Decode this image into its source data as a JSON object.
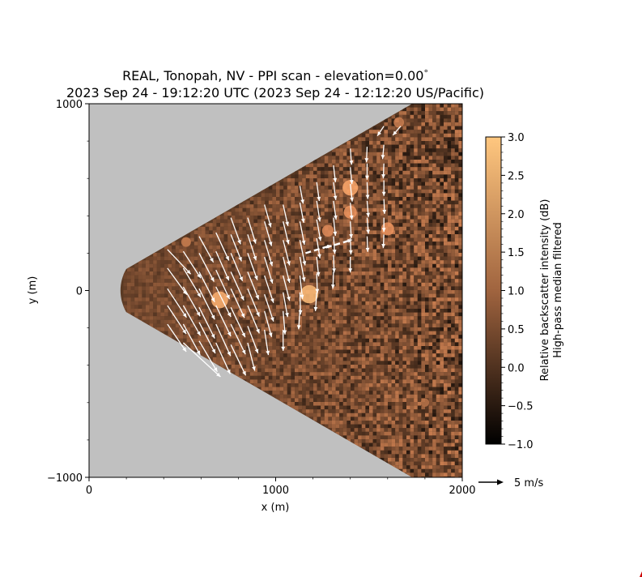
{
  "chart_data": {
    "type": "heatmap",
    "title_line1": "REAL, Tonopah, NV - PPI scan - elevation=0.00",
    "title_degree": "°",
    "title_line2": "2023 Sep 24 - 19:12:20 UTC (2023 Sep 24 - 12:12:20 US/Pacific)",
    "xlabel": "x (m)",
    "ylabel": "y (m)",
    "xlim": [
      0,
      2000
    ],
    "ylim": [
      -1000,
      1000
    ],
    "x_ticks": [
      {
        "value": 0,
        "label": "0"
      },
      {
        "value": 1000,
        "label": "1000"
      },
      {
        "value": 2000,
        "label": "2000"
      }
    ],
    "y_ticks": [
      {
        "value": 1000,
        "label": "1000"
      },
      {
        "value": 0,
        "label": "0"
      },
      {
        "value": -1000,
        "label": "−1000"
      }
    ],
    "scan_sector": {
      "min_range_m": 230,
      "half_angle_deg": 30
    },
    "colorbar": {
      "label_line1": "Relative backscatter intensity (dB)",
      "label_line2": "High-pass median filtered",
      "vmin": -1.0,
      "vmax": 3.0,
      "ticks": [
        {
          "value": 3.0,
          "label": "3.0"
        },
        {
          "value": 2.5,
          "label": "2.5"
        },
        {
          "value": 2.0,
          "label": "2.0"
        },
        {
          "value": 1.5,
          "label": "1.5"
        },
        {
          "value": 1.0,
          "label": "1.0"
        },
        {
          "value": 0.5,
          "label": "0.5"
        },
        {
          "value": 0.0,
          "label": "0.0"
        },
        {
          "value": -0.5,
          "label": "−0.5"
        },
        {
          "value": -1.0,
          "label": "−1.0"
        }
      ],
      "colormap": "copper",
      "colors": [
        "#000000",
        "#a0643f",
        "#ffc77f"
      ]
    },
    "quiver_key": {
      "label": "5 m/s",
      "speed_m_s": 5
    },
    "background_color": "#c0c0c0",
    "vector_color": "#ffffff",
    "bright_features": [
      {
        "x": 700,
        "y": -50,
        "value": 2.6
      },
      {
        "x": 1180,
        "y": -20,
        "value": 2.8
      },
      {
        "x": 1400,
        "y": 550,
        "value": 2.4
      },
      {
        "x": 1400,
        "y": 420,
        "value": 2.0
      },
      {
        "x": 1280,
        "y": 320,
        "value": 1.8
      },
      {
        "x": 520,
        "y": 260,
        "value": 1.5
      },
      {
        "x": 1600,
        "y": 330,
        "value": 2.0
      },
      {
        "x": 1660,
        "y": 900,
        "value": 1.6
      },
      {
        "x": 820,
        "y": -120,
        "value": 1.4
      },
      {
        "x": 1800,
        "y": -600,
        "value": 1.3
      }
    ],
    "wind_vectors": [
      {
        "x": 420,
        "y": 220,
        "u": 0.72,
        "v": -0.76
      },
      {
        "x": 420,
        "y": 120,
        "u": 0.6,
        "v": -0.82
      },
      {
        "x": 420,
        "y": 10,
        "u": 0.59,
        "v": -0.89
      },
      {
        "x": 420,
        "y": -80,
        "u": 0.58,
        "v": -0.88
      },
      {
        "x": 420,
        "y": -180,
        "u": 0.58,
        "v": -0.85
      },
      {
        "x": 505,
        "y": 210,
        "u": 0.54,
        "v": -0.83
      },
      {
        "x": 505,
        "y": 120,
        "u": 0.54,
        "v": -0.9
      },
      {
        "x": 505,
        "y": 20,
        "u": 0.52,
        "v": -0.91
      },
      {
        "x": 505,
        "y": -80,
        "u": 0.53,
        "v": -0.93
      },
      {
        "x": 505,
        "y": -180,
        "u": 0.52,
        "v": -0.95
      },
      {
        "x": 505,
        "y": -280,
        "u": 1.15,
        "v": -1.05
      },
      {
        "x": 590,
        "y": 290,
        "u": 0.44,
        "v": -0.8
      },
      {
        "x": 590,
        "y": 200,
        "u": 0.46,
        "v": -0.88
      },
      {
        "x": 590,
        "y": 100,
        "u": 0.48,
        "v": -0.93
      },
      {
        "x": 590,
        "y": 10,
        "u": 0.48,
        "v": -0.95
      },
      {
        "x": 590,
        "y": -90,
        "u": 0.48,
        "v": -0.96
      },
      {
        "x": 590,
        "y": -170,
        "u": 0.5,
        "v": -0.96
      },
      {
        "x": 590,
        "y": -270,
        "u": 0.56,
        "v": -0.95
      },
      {
        "x": 680,
        "y": 310,
        "u": 0.4,
        "v": -0.86
      },
      {
        "x": 680,
        "y": 210,
        "u": 0.4,
        "v": -0.9
      },
      {
        "x": 680,
        "y": 110,
        "u": 0.42,
        "v": -0.9
      },
      {
        "x": 680,
        "y": 20,
        "u": 0.46,
        "v": -0.93
      },
      {
        "x": 680,
        "y": -80,
        "u": 0.46,
        "v": -0.95
      },
      {
        "x": 680,
        "y": -180,
        "u": 0.45,
        "v": -0.98
      },
      {
        "x": 680,
        "y": -280,
        "u": 0.44,
        "v": -0.96
      },
      {
        "x": 760,
        "y": 390,
        "u": 0.3,
        "v": -0.82
      },
      {
        "x": 760,
        "y": 300,
        "u": 0.33,
        "v": -0.83
      },
      {
        "x": 760,
        "y": 200,
        "u": 0.36,
        "v": -0.86
      },
      {
        "x": 760,
        "y": 100,
        "u": 0.4,
        "v": -0.88
      },
      {
        "x": 760,
        "y": 10,
        "u": 0.42,
        "v": -0.9
      },
      {
        "x": 760,
        "y": -90,
        "u": 0.44,
        "v": -0.92
      },
      {
        "x": 760,
        "y": -180,
        "u": 0.45,
        "v": -0.93
      },
      {
        "x": 760,
        "y": -290,
        "u": 0.46,
        "v": -0.95
      },
      {
        "x": 850,
        "y": 390,
        "u": 0.25,
        "v": -0.8
      },
      {
        "x": 850,
        "y": 300,
        "u": 0.26,
        "v": -0.8
      },
      {
        "x": 850,
        "y": 200,
        "u": 0.3,
        "v": -0.83
      },
      {
        "x": 850,
        "y": 100,
        "u": 0.34,
        "v": -0.85
      },
      {
        "x": 850,
        "y": 10,
        "u": 0.36,
        "v": -0.86
      },
      {
        "x": 850,
        "y": -80,
        "u": 0.36,
        "v": -0.86
      },
      {
        "x": 850,
        "y": -190,
        "u": 0.32,
        "v": -0.84
      },
      {
        "x": 850,
        "y": -280,
        "u": 0.22,
        "v": -0.86
      },
      {
        "x": 940,
        "y": 460,
        "u": 0.2,
        "v": -0.7
      },
      {
        "x": 940,
        "y": 370,
        "u": 0.22,
        "v": -0.76
      },
      {
        "x": 940,
        "y": 270,
        "u": 0.24,
        "v": -0.8
      },
      {
        "x": 940,
        "y": 180,
        "u": 0.25,
        "v": -0.82
      },
      {
        "x": 940,
        "y": 80,
        "u": 0.28,
        "v": -0.84
      },
      {
        "x": 940,
        "y": -20,
        "u": 0.28,
        "v": -0.84
      },
      {
        "x": 940,
        "y": -110,
        "u": 0.22,
        "v": -0.8
      },
      {
        "x": 940,
        "y": -210,
        "u": 0.12,
        "v": -0.78
      },
      {
        "x": 1040,
        "y": 460,
        "u": 0.15,
        "v": -0.66
      },
      {
        "x": 1040,
        "y": 370,
        "u": 0.17,
        "v": -0.7
      },
      {
        "x": 1040,
        "y": 270,
        "u": 0.2,
        "v": -0.78
      },
      {
        "x": 1040,
        "y": 180,
        "u": 0.2,
        "v": -0.8
      },
      {
        "x": 1040,
        "y": 80,
        "u": 0.2,
        "v": -0.78
      },
      {
        "x": 1040,
        "y": -10,
        "u": 0.14,
        "v": -0.76
      },
      {
        "x": 1040,
        "y": -110,
        "u": 0.06,
        "v": -0.72
      },
      {
        "x": 1040,
        "y": -210,
        "u": 0.0,
        "v": -0.65
      },
      {
        "x": 1130,
        "y": 560,
        "u": 0.1,
        "v": -0.55
      },
      {
        "x": 1130,
        "y": 470,
        "u": 0.12,
        "v": -0.62
      },
      {
        "x": 1130,
        "y": 370,
        "u": 0.14,
        "v": -0.72
      },
      {
        "x": 1130,
        "y": 270,
        "u": 0.16,
        "v": -0.78
      },
      {
        "x": 1130,
        "y": 180,
        "u": 0.14,
        "v": -0.76
      },
      {
        "x": 1130,
        "y": 80,
        "u": 0.08,
        "v": -0.72
      },
      {
        "x": 1130,
        "y": -10,
        "u": 0.02,
        "v": -0.68
      },
      {
        "x": 1130,
        "y": -100,
        "u": -0.04,
        "v": -0.62
      },
      {
        "x": 1220,
        "y": 580,
        "u": 0.08,
        "v": -0.58
      },
      {
        "x": 1220,
        "y": 480,
        "u": 0.1,
        "v": -0.64
      },
      {
        "x": 1220,
        "y": 380,
        "u": 0.12,
        "v": -0.66
      },
      {
        "x": 1220,
        "y": 280,
        "u": 0.1,
        "v": -0.62
      },
      {
        "x": 1220,
        "y": 180,
        "u": 0.06,
        "v": -0.6
      },
      {
        "x": 1220,
        "y": 90,
        "u": 0.02,
        "v": -0.6
      },
      {
        "x": 1220,
        "y": -10,
        "u": -0.04,
        "v": -0.58
      },
      {
        "x": 1310,
        "y": 670,
        "u": 0.06,
        "v": -0.52
      },
      {
        "x": 1310,
        "y": 580,
        "u": 0.07,
        "v": -0.55
      },
      {
        "x": 1310,
        "y": 480,
        "u": 0.08,
        "v": -0.58
      },
      {
        "x": 1310,
        "y": 390,
        "u": 0.06,
        "v": -0.56
      },
      {
        "x": 1310,
        "y": 290,
        "u": 0.04,
        "v": -0.54
      },
      {
        "x": 1310,
        "y": 190,
        "u": 0.02,
        "v": -0.54
      },
      {
        "x": 1310,
        "y": 100,
        "u": -0.02,
        "v": -0.52
      },
      {
        "x": 1400,
        "y": 760,
        "u": 0.04,
        "v": -0.5
      },
      {
        "x": 1400,
        "y": 660,
        "u": 0.05,
        "v": -0.52
      },
      {
        "x": 1400,
        "y": 570,
        "u": 0.06,
        "v": -0.54
      },
      {
        "x": 1400,
        "y": 470,
        "u": 0.05,
        "v": -0.52
      },
      {
        "x": 1400,
        "y": 370,
        "u": 0.03,
        "v": -0.52
      },
      {
        "x": 1400,
        "y": 280,
        "u": 0.02,
        "v": -0.5
      },
      {
        "x": 1400,
        "y": 180,
        "u": 0.0,
        "v": -0.48
      },
      {
        "x": 1490,
        "y": 770,
        "u": -0.02,
        "v": -0.48
      },
      {
        "x": 1490,
        "y": 680,
        "u": 0.0,
        "v": -0.5
      },
      {
        "x": 1490,
        "y": 580,
        "u": 0.02,
        "v": -0.52
      },
      {
        "x": 1490,
        "y": 480,
        "u": 0.04,
        "v": -0.5
      },
      {
        "x": 1490,
        "y": 390,
        "u": 0.04,
        "v": -0.5
      },
      {
        "x": 1490,
        "y": 290,
        "u": 0.02,
        "v": -0.48
      },
      {
        "x": 1580,
        "y": 880,
        "u": -0.2,
        "v": -0.3
      },
      {
        "x": 1580,
        "y": 780,
        "u": -0.04,
        "v": -0.44
      },
      {
        "x": 1580,
        "y": 680,
        "u": -0.02,
        "v": -0.46
      },
      {
        "x": 1580,
        "y": 590,
        "u": 0.0,
        "v": -0.48
      },
      {
        "x": 1580,
        "y": 490,
        "u": 0.02,
        "v": -0.46
      },
      {
        "x": 1580,
        "y": 390,
        "u": 0.0,
        "v": -0.44
      },
      {
        "x": 1580,
        "y": 300,
        "u": -0.02,
        "v": -0.42
      },
      {
        "x": 1670,
        "y": 880,
        "u": -0.24,
        "v": -0.28
      }
    ],
    "dashed_arrows": [
      {
        "x": 1160,
        "y": 200,
        "u": 0.8,
        "v": 0.24
      },
      {
        "x": 1270,
        "y": 230,
        "u": 0.8,
        "v": 0.24
      }
    ]
  }
}
